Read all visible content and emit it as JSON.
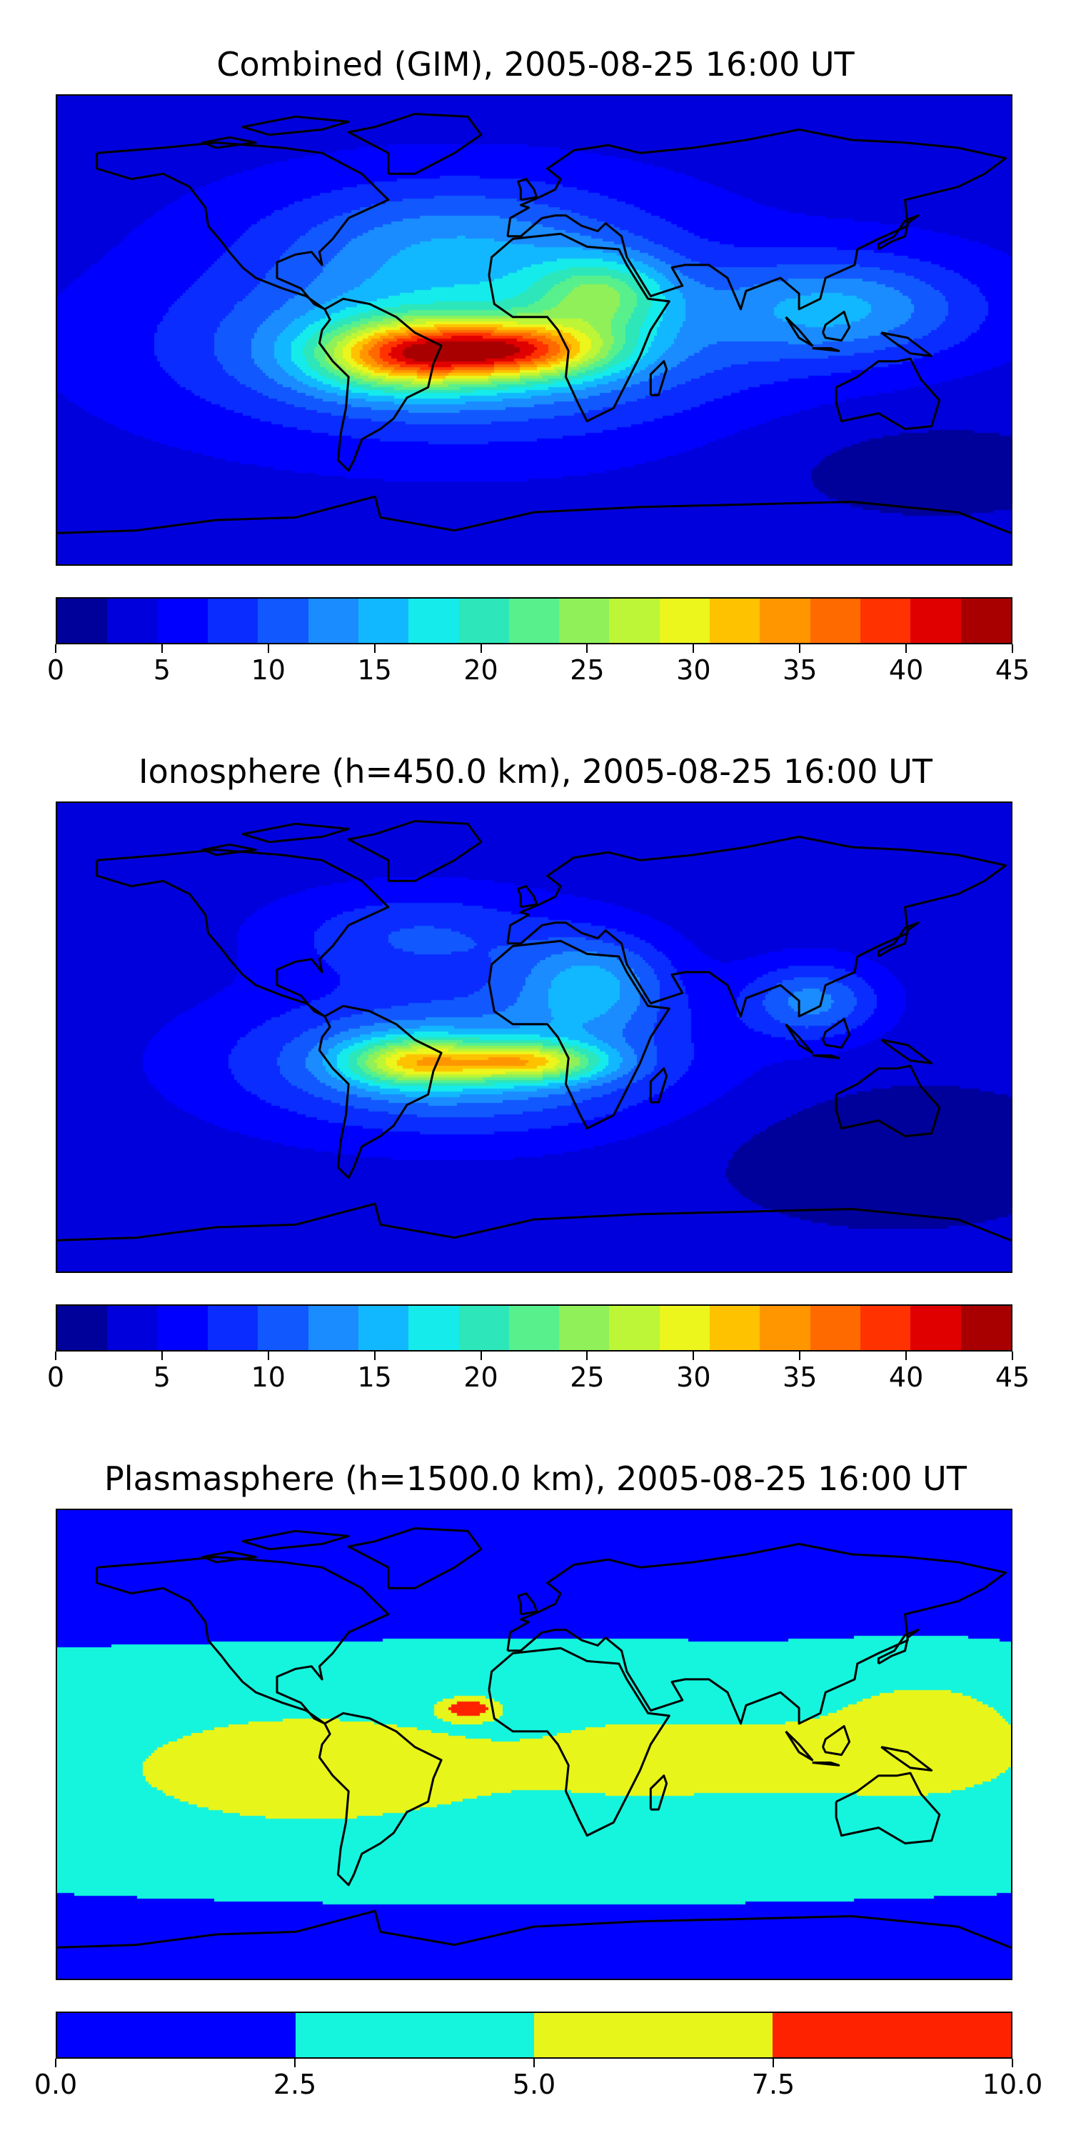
{
  "panels": [
    {
      "title": "Combined (GIM), 2005-08-25 16:00 UT",
      "colorbar_ticks": [
        "0",
        "5",
        "10",
        "15",
        "20",
        "25",
        "30",
        "35",
        "40",
        "45"
      ],
      "colorbar_colors": [
        "#00009b",
        "#0000dc",
        "#0000ff",
        "#0a2cff",
        "#1258ff",
        "#1a8cff",
        "#12b8ff",
        "#15ebeb",
        "#2de6b9",
        "#58f08d",
        "#8ff05a",
        "#bdf537",
        "#ecf51c",
        "#ffc200",
        "#ff9600",
        "#ff6a00",
        "#ff3200",
        "#e00000",
        "#a80000"
      ],
      "field": "combined"
    },
    {
      "title": "Ionosphere  (h=450.0 km), 2005-08-25 16:00 UT",
      "colorbar_ticks": [
        "0",
        "5",
        "10",
        "15",
        "20",
        "25",
        "30",
        "35",
        "40",
        "45"
      ],
      "colorbar_colors": [
        "#00009b",
        "#0000dc",
        "#0000ff",
        "#0a2cff",
        "#1258ff",
        "#1a8cff",
        "#12b8ff",
        "#15ebeb",
        "#2de6b9",
        "#58f08d",
        "#8ff05a",
        "#bdf537",
        "#ecf51c",
        "#ffc200",
        "#ff9600",
        "#ff6a00",
        "#ff3200",
        "#e00000",
        "#a80000"
      ],
      "field": "ionosphere"
    },
    {
      "title": "Plasmasphere (h=1500.0 km), 2005-08-25 16:00 UT",
      "colorbar_ticks": [
        "0.0",
        "2.5",
        "5.0",
        "7.5",
        "10.0"
      ],
      "colorbar_colors": [
        "#0000ff",
        "#15f5dd",
        "#e8f51a",
        "#ff2200"
      ],
      "field": "plasmasphere"
    }
  ],
  "chart_data": [
    {
      "type": "heatmap",
      "title": "Combined (GIM), 2005-08-25 16:00 UT",
      "colorbar_range": [
        0,
        45
      ],
      "colorbar_step": 2.5,
      "hotspots": [
        {
          "region": "South America",
          "value": 40
        },
        {
          "region": "Tropical Atlantic",
          "value": 42
        },
        {
          "region": "West Africa",
          "value": 35
        }
      ]
    },
    {
      "type": "heatmap",
      "title": "Ionosphere  (h=450.0 km), 2005-08-25 16:00 UT",
      "colorbar_range": [
        0,
        45
      ],
      "colorbar_step": 2.5,
      "hotspots": [
        {
          "region": "South America",
          "value": 35
        },
        {
          "region": "Tropical Atlantic",
          "value": 37
        },
        {
          "region": "West Africa",
          "value": 32
        }
      ]
    },
    {
      "type": "heatmap",
      "title": "Plasmasphere (h=1500.0 km), 2005-08-25 16:00 UT",
      "colorbar_range": [
        0,
        10
      ],
      "colorbar_step": 2.5,
      "hotspots": [
        {
          "region": "North Africa (small patch)",
          "value": 8
        }
      ]
    }
  ]
}
